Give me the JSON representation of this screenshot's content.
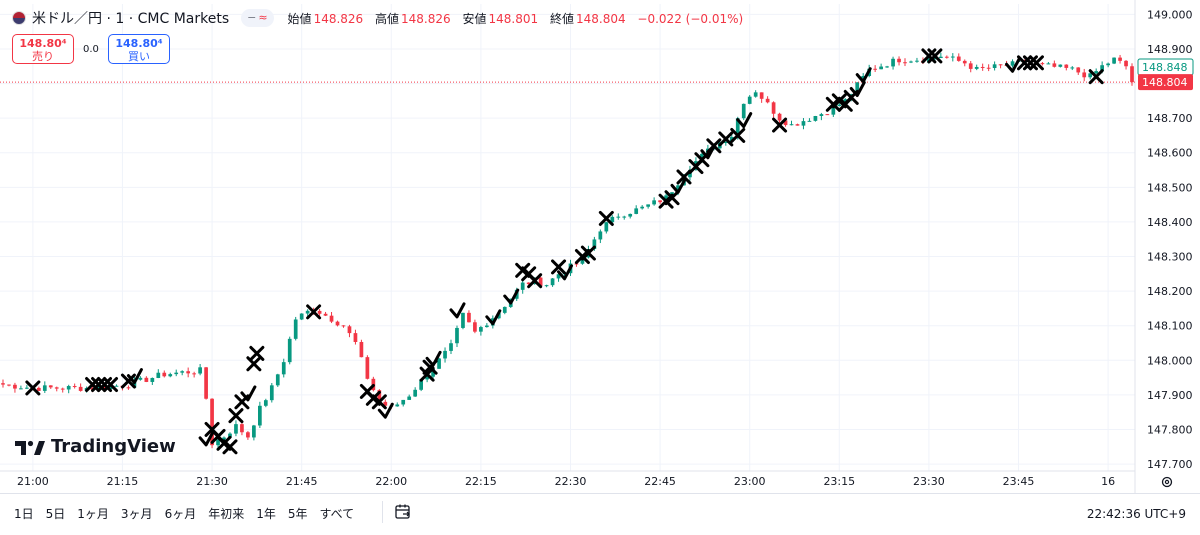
{
  "header": {
    "title": "米ドル／円 · 1 · CMC Markets",
    "pill_minus": "−",
    "pill_approx": "≈",
    "ohlc": [
      {
        "label": "始値",
        "value": "148.826"
      },
      {
        "label": "高値",
        "value": "148.826"
      },
      {
        "label": "安値",
        "value": "148.801"
      },
      {
        "label": "終値",
        "value": "148.804"
      }
    ],
    "change": "−0.022 (−0.01%)"
  },
  "sell_box": {
    "price": "148.80⁴",
    "label": "売り"
  },
  "buy_box": {
    "price": "148.80⁴",
    "label": "買い"
  },
  "spread": "0.0",
  "logo_text": "TradingView",
  "periods": [
    "1日",
    "5日",
    "1ヶ月",
    "3ヶ月",
    "6ヶ月",
    "年初来",
    "1年",
    "5年",
    "すべて"
  ],
  "clock": "22:42:36 UTC+9",
  "colors": {
    "up": "#089981",
    "down": "#f23645",
    "grid": "#f0f3fa",
    "marker": "#000000"
  },
  "chart_data": {
    "type": "candlestick",
    "ylim": [
      147.68,
      149.03
    ],
    "y_ticks": [
      "149.000",
      "148.900",
      "148.800",
      "148.700",
      "148.600",
      "148.500",
      "148.400",
      "148.300",
      "148.200",
      "148.100",
      "148.000",
      "147.900",
      "147.800",
      "147.700"
    ],
    "x_ticks": [
      "21:00",
      "21:15",
      "21:30",
      "21:45",
      "22:00",
      "22:15",
      "22:30",
      "22:45",
      "23:00",
      "23:15",
      "23:30",
      "23:45",
      "16"
    ],
    "x_tick_minutes": [
      0,
      15,
      30,
      45,
      60,
      75,
      90,
      105,
      120,
      135,
      150,
      165,
      180
    ],
    "x_range": [
      -5.5,
      184.5
    ],
    "price_labels": [
      {
        "value": 148.848,
        "text": "148.848",
        "style": "outline"
      },
      {
        "value": 148.804,
        "text": "148.804",
        "style": "filled"
      }
    ],
    "price_line": 148.804,
    "anchors": [
      [
        -5,
        147.93
      ],
      [
        0,
        147.92
      ],
      [
        5,
        147.92
      ],
      [
        10,
        147.92
      ],
      [
        16,
        147.93
      ],
      [
        22,
        147.96
      ],
      [
        28,
        147.97
      ],
      [
        29,
        147.89
      ],
      [
        30,
        147.76
      ],
      [
        32,
        147.78
      ],
      [
        34,
        147.81
      ],
      [
        36,
        147.78
      ],
      [
        38,
        147.86
      ],
      [
        40,
        147.92
      ],
      [
        42,
        148.0
      ],
      [
        44,
        148.12
      ],
      [
        47,
        148.15
      ],
      [
        52,
        148.1
      ],
      [
        54,
        148.05
      ],
      [
        56,
        147.95
      ],
      [
        58,
        147.88
      ],
      [
        60,
        147.86
      ],
      [
        63,
        147.9
      ],
      [
        66,
        147.96
      ],
      [
        70,
        148.04
      ],
      [
        72,
        148.13
      ],
      [
        74,
        148.08
      ],
      [
        78,
        148.14
      ],
      [
        82,
        148.22
      ],
      [
        84,
        148.23
      ],
      [
        86,
        148.22
      ],
      [
        88,
        148.25
      ],
      [
        92,
        148.29
      ],
      [
        95,
        148.38
      ],
      [
        98,
        148.42
      ],
      [
        102,
        148.44
      ],
      [
        106,
        148.47
      ],
      [
        110,
        148.56
      ],
      [
        114,
        148.62
      ],
      [
        117,
        148.65
      ],
      [
        119,
        148.75
      ],
      [
        121,
        148.78
      ],
      [
        123,
        148.74
      ],
      [
        125,
        148.7
      ],
      [
        127,
        148.68
      ],
      [
        130,
        148.7
      ],
      [
        133,
        148.72
      ],
      [
        136,
        148.75
      ],
      [
        140,
        148.84
      ],
      [
        145,
        148.87
      ],
      [
        150,
        148.87
      ],
      [
        152,
        148.88
      ],
      [
        156,
        148.86
      ],
      [
        158,
        148.84
      ],
      [
        162,
        148.85
      ],
      [
        166,
        148.86
      ],
      [
        170,
        148.85
      ],
      [
        174,
        148.84
      ],
      [
        177,
        148.82
      ],
      [
        179,
        148.85
      ],
      [
        181,
        148.87
      ],
      [
        183,
        148.85
      ],
      [
        184,
        148.804
      ]
    ],
    "markers": [
      {
        "t": 0,
        "p": 147.92,
        "sym": "x"
      },
      {
        "t": 10,
        "p": 147.93,
        "sym": "x"
      },
      {
        "t": 11,
        "p": 147.93,
        "sym": "x"
      },
      {
        "t": 12,
        "p": 147.93,
        "sym": "x"
      },
      {
        "t": 13,
        "p": 147.93,
        "sym": "x"
      },
      {
        "t": 16,
        "p": 147.94,
        "sym": "x"
      },
      {
        "t": 17,
        "p": 147.95,
        "sym": "check"
      },
      {
        "t": 29,
        "p": 147.77,
        "sym": "check"
      },
      {
        "t": 30,
        "p": 147.8,
        "sym": "x"
      },
      {
        "t": 31,
        "p": 147.78,
        "sym": "x"
      },
      {
        "t": 32,
        "p": 147.76,
        "sym": "x"
      },
      {
        "t": 33,
        "p": 147.75,
        "sym": "x"
      },
      {
        "t": 34,
        "p": 147.84,
        "sym": "x"
      },
      {
        "t": 35,
        "p": 147.88,
        "sym": "x"
      },
      {
        "t": 36,
        "p": 147.9,
        "sym": "check"
      },
      {
        "t": 37,
        "p": 147.99,
        "sym": "x"
      },
      {
        "t": 37.5,
        "p": 148.02,
        "sym": "x"
      },
      {
        "t": 47,
        "p": 148.14,
        "sym": "x"
      },
      {
        "t": 56,
        "p": 147.91,
        "sym": "x"
      },
      {
        "t": 57,
        "p": 147.89,
        "sym": "x"
      },
      {
        "t": 58,
        "p": 147.88,
        "sym": "x"
      },
      {
        "t": 59,
        "p": 147.85,
        "sym": "check"
      },
      {
        "t": 66,
        "p": 147.96,
        "sym": "x"
      },
      {
        "t": 66.5,
        "p": 147.98,
        "sym": "x"
      },
      {
        "t": 67,
        "p": 148.0,
        "sym": "check"
      },
      {
        "t": 71,
        "p": 148.14,
        "sym": "check"
      },
      {
        "t": 77,
        "p": 148.12,
        "sym": "check"
      },
      {
        "t": 80,
        "p": 148.18,
        "sym": "check"
      },
      {
        "t": 82,
        "p": 148.26,
        "sym": "x"
      },
      {
        "t": 83,
        "p": 148.25,
        "sym": "x"
      },
      {
        "t": 84,
        "p": 148.23,
        "sym": "x"
      },
      {
        "t": 88,
        "p": 148.27,
        "sym": "x"
      },
      {
        "t": 89,
        "p": 148.25,
        "sym": "check"
      },
      {
        "t": 92,
        "p": 148.3,
        "sym": "x"
      },
      {
        "t": 93,
        "p": 148.31,
        "sym": "x"
      },
      {
        "t": 96,
        "p": 148.41,
        "sym": "x"
      },
      {
        "t": 106,
        "p": 148.46,
        "sym": "x"
      },
      {
        "t": 107,
        "p": 148.47,
        "sym": "x"
      },
      {
        "t": 108,
        "p": 148.5,
        "sym": "check"
      },
      {
        "t": 109,
        "p": 148.53,
        "sym": "x"
      },
      {
        "t": 111,
        "p": 148.56,
        "sym": "x"
      },
      {
        "t": 112,
        "p": 148.58,
        "sym": "x"
      },
      {
        "t": 113,
        "p": 148.6,
        "sym": "check"
      },
      {
        "t": 114,
        "p": 148.62,
        "sym": "x"
      },
      {
        "t": 116,
        "p": 148.64,
        "sym": "x"
      },
      {
        "t": 118,
        "p": 148.65,
        "sym": "x"
      },
      {
        "t": 119,
        "p": 148.69,
        "sym": "check"
      },
      {
        "t": 125,
        "p": 148.68,
        "sym": "x"
      },
      {
        "t": 134,
        "p": 148.74,
        "sym": "x"
      },
      {
        "t": 135,
        "p": 148.75,
        "sym": "x"
      },
      {
        "t": 136,
        "p": 148.74,
        "sym": "x"
      },
      {
        "t": 137,
        "p": 148.76,
        "sym": "x"
      },
      {
        "t": 138,
        "p": 148.78,
        "sym": "check"
      },
      {
        "t": 139,
        "p": 148.82,
        "sym": "check"
      },
      {
        "t": 150,
        "p": 148.88,
        "sym": "x"
      },
      {
        "t": 151,
        "p": 148.88,
        "sym": "x"
      },
      {
        "t": 164,
        "p": 148.85,
        "sym": "check"
      },
      {
        "t": 166,
        "p": 148.86,
        "sym": "x"
      },
      {
        "t": 167,
        "p": 148.86,
        "sym": "x"
      },
      {
        "t": 168,
        "p": 148.86,
        "sym": "x"
      },
      {
        "t": 178,
        "p": 148.82,
        "sym": "x"
      }
    ]
  }
}
